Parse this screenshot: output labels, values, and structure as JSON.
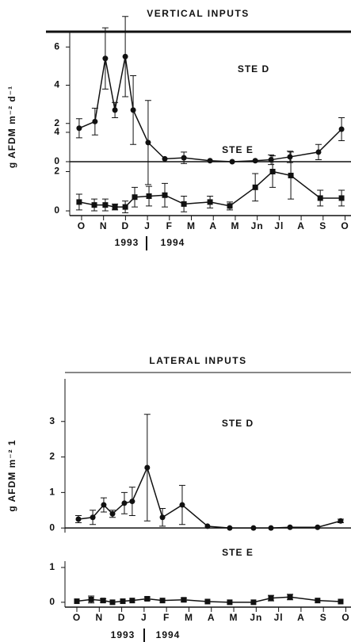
{
  "chart_data": [
    {
      "type": "line",
      "title": "VERTICAL INPUTS",
      "y_label": "g AFDM m⁻² d⁻¹",
      "label": "STE D",
      "marker": "circle",
      "color": "#111111",
      "x": [
        -0.11,
        0.61,
        1.08,
        1.52,
        1.99,
        2.35,
        3.03,
        3.79,
        4.66,
        5.85,
        6.86,
        7.91,
        8.63,
        9.49,
        10.79,
        11.84
      ],
      "values": [
        1.75,
        2.1,
        5.4,
        2.7,
        5.5,
        2.7,
        1.0,
        0.15,
        0.2,
        0.05,
        0,
        0.05,
        0.1,
        0.25,
        0.5,
        1.7
      ],
      "errors": [
        0.5,
        0.7,
        1.6,
        0.4,
        2.1,
        1.8,
        2.2,
        null,
        0.3,
        null,
        null,
        null,
        0.25,
        0.3,
        0.4,
        0.6
      ],
      "xlim": [
        -0.54,
        12.27
      ],
      "ylim": [
        -0.25,
        6.8
      ],
      "yticks": [
        0,
        2,
        4,
        6
      ]
    },
    {
      "type": "line",
      "label": "STE E",
      "marker": "square",
      "color": "#111111",
      "x": [
        -0.11,
        0.58,
        1.08,
        1.52,
        1.99,
        2.42,
        3.07,
        3.79,
        4.66,
        5.85,
        6.75,
        7.91,
        8.7,
        9.53,
        10.87,
        11.84
      ],
      "values": [
        0.45,
        0.3,
        0.3,
        0.2,
        0.2,
        0.7,
        0.75,
        0.8,
        0.35,
        0.45,
        0.25,
        1.2,
        2.0,
        1.8,
        0.65,
        0.65
      ],
      "errors": [
        0.4,
        0.3,
        0.3,
        0.15,
        0.3,
        0.5,
        0.5,
        0.6,
        0.4,
        0.3,
        0.2,
        0.7,
        0.8,
        1.2,
        0.4,
        0.4
      ],
      "xlim": [
        -0.54,
        12.27
      ],
      "ylim": [
        -0.24,
        4.28
      ],
      "yticks": [
        0,
        2,
        4
      ],
      "xticks": [
        {
          "value": 0,
          "label": "O"
        },
        {
          "value": 1,
          "label": "N"
        },
        {
          "value": 2,
          "label": "D"
        },
        {
          "value": 3,
          "label": "J"
        },
        {
          "value": 4,
          "label": "F"
        },
        {
          "value": 5,
          "label": "M"
        },
        {
          "value": 6,
          "label": "A"
        },
        {
          "value": 7,
          "label": "M"
        },
        {
          "value": 8,
          "label": "Jn"
        },
        {
          "value": 9,
          "label": "Jl"
        },
        {
          "value": 10,
          "label": "A"
        },
        {
          "value": 11,
          "label": "S"
        },
        {
          "value": 12,
          "label": "O"
        }
      ],
      "year_labels": [
        "1993",
        "1994"
      ]
    },
    {
      "type": "line",
      "title": "LATERAL INPUTS",
      "y_label": "g AFDM m⁻² 1",
      "label": "STE D",
      "marker": "circle",
      "color": "#111111",
      "x": [
        0.07,
        0.71,
        1.2,
        1.59,
        2.12,
        2.47,
        3.14,
        3.82,
        4.7,
        5.83,
        6.82,
        7.88,
        8.66,
        9.51,
        10.74,
        11.77
      ],
      "values": [
        0.25,
        0.3,
        0.65,
        0.4,
        0.7,
        0.75,
        1.7,
        0.3,
        0.65,
        0.05,
        0,
        0,
        0,
        0.02,
        0.02,
        0.2
      ],
      "errors": [
        0.1,
        0.2,
        0.2,
        0.1,
        0.3,
        0.4,
        1.5,
        0.25,
        0.55,
        null,
        null,
        null,
        null,
        null,
        null,
        0.05
      ],
      "xlim": [
        -0.53,
        12.23
      ],
      "ylim": [
        -0.13,
        4.2
      ],
      "yticks": [
        0,
        1,
        2,
        3
      ]
    },
    {
      "type": "line",
      "label": "STE E",
      "marker": "square",
      "color": "#111111",
      "x": [
        0,
        0.64,
        1.17,
        1.59,
        2.05,
        2.47,
        3.14,
        3.82,
        4.77,
        5.83,
        6.82,
        7.88,
        8.66,
        9.51,
        10.74,
        11.77
      ],
      "values": [
        0.03,
        0.08,
        0.05,
        0,
        0.03,
        0.05,
        0.1,
        0.05,
        0.07,
        0.02,
        0,
        0,
        0.12,
        0.15,
        0.05,
        0.02
      ],
      "errors": [
        null,
        0.1,
        0.05,
        null,
        null,
        null,
        0.05,
        null,
        0.05,
        null,
        null,
        null,
        0.08,
        0.08,
        null,
        null
      ],
      "xlim": [
        -0.53,
        12.23
      ],
      "ylim": [
        -0.14,
        1.82
      ],
      "yticks": [
        0,
        1
      ],
      "xticks": [
        {
          "value": 0,
          "label": "O"
        },
        {
          "value": 1,
          "label": "N"
        },
        {
          "value": 2,
          "label": "D"
        },
        {
          "value": 3,
          "label": "J"
        },
        {
          "value": 4,
          "label": "F"
        },
        {
          "value": 5,
          "label": "M"
        },
        {
          "value": 6,
          "label": "A"
        },
        {
          "value": 7,
          "label": "M"
        },
        {
          "value": 8,
          "label": "Jn"
        },
        {
          "value": 9,
          "label": "Jl"
        },
        {
          "value": 10,
          "label": "A"
        },
        {
          "value": 11,
          "label": "S"
        },
        {
          "value": 12,
          "label": "O"
        }
      ],
      "year_labels": [
        "1993",
        "1994"
      ]
    }
  ]
}
